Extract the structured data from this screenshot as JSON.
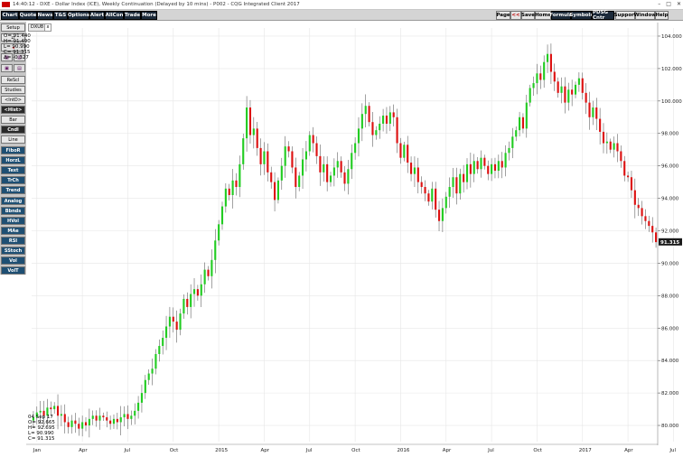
{
  "window": {
    "title": "14:40:12 - DXE - Dollar Index (ICE), Weekly Continuation (Delayed by 10 mins) - P002 - CQG Integrated Client 2017",
    "min_label": "–",
    "max_label": "□",
    "close_label": "✕"
  },
  "toolbar": {
    "left": [
      "Chart",
      "Quote",
      "News",
      "T&S",
      "Options",
      "Alert",
      "AllCon",
      "Trade",
      "More"
    ],
    "right": [
      "Page",
      "<<",
      "Save",
      "Home",
      "Formula",
      "Symbols",
      "PDSG Cntr",
      "Support",
      "Window",
      "Help"
    ]
  },
  "sidebar": {
    "setup": "Setup",
    "sync": "⇄",
    "red_arrow": "◂",
    "grid_a": "▦",
    "grid_b": "▥",
    "grid_c": "▣",
    "grid_d": "▤",
    "refresh": "ReScl",
    "studies": "Studies",
    "intd": "<IntD>",
    "hist": "<Hist>",
    "bar": "Bar",
    "candle": "Cndl",
    "line": "Line",
    "studies_list": [
      "FiboR",
      "HorzL",
      "Text",
      "TrCh",
      "Trend",
      "Analog",
      "Bbnds",
      "HVol",
      "MAe",
      "RSI",
      "SStoch",
      "Vol",
      "VolT"
    ]
  },
  "symbol": {
    "tag": "DXU8",
    "close_x": "x"
  },
  "info_panel": {
    "date": "04 Sep 17",
    "open": "O=  92.665",
    "high": "H=  92.695",
    "low": "L=  90.990",
    "close": "C=  91.315"
  },
  "top_readout": {
    "open": "O=  91.440",
    "high": "H=  91.490",
    "low": "L=  90.990",
    "close": "C=  91.315",
    "delta": "Δ=  -0.327"
  },
  "last_price": "91.315",
  "colors": {
    "up": "#22cc22",
    "down": "#dd1111",
    "last_price_bg": "#1a1a1a",
    "grid": "#e6e6e6"
  },
  "chart_data": {
    "type": "candlestick",
    "symbol": "DXE",
    "ylim": [
      79.0,
      104.5
    ],
    "yticks": [
      80,
      82,
      84,
      86,
      88,
      90,
      92,
      94,
      96,
      98,
      100,
      102,
      104
    ],
    "ytick_labels": [
      "80.000",
      "82.000",
      "84.000",
      "86.000",
      "88.000",
      "90.000",
      "92.000",
      "94.000",
      "96.000",
      "98.000",
      "100.000",
      "102.000",
      "104.000"
    ],
    "xticks": [
      {
        "label": "Jan",
        "i": 1
      },
      {
        "label": "Apr",
        "i": 14
      },
      {
        "label": "Jul",
        "i": 27
      },
      {
        "label": "Oct",
        "i": 40
      },
      {
        "label": "2015",
        "i": 53
      },
      {
        "label": "Apr",
        "i": 66
      },
      {
        "label": "Jul",
        "i": 79
      },
      {
        "label": "Oct",
        "i": 92
      },
      {
        "label": "2016",
        "i": 105
      },
      {
        "label": "Apr",
        "i": 118
      },
      {
        "label": "Jul",
        "i": 131
      },
      {
        "label": "Oct",
        "i": 144
      },
      {
        "label": "2017",
        "i": 157
      },
      {
        "label": "Apr",
        "i": 170
      },
      {
        "label": "Jul",
        "i": 183
      }
    ],
    "closes": [
      80.5,
      80.8,
      80.9,
      80.6,
      81.1,
      81.0,
      81.2,
      80.6,
      80.7,
      80.2,
      79.9,
      80.3,
      80.1,
      79.8,
      80.2,
      80.0,
      80.4,
      80.6,
      80.3,
      80.6,
      80.5,
      80.3,
      80.1,
      80.4,
      80.2,
      80.5,
      80.7,
      80.4,
      80.6,
      80.9,
      81.4,
      82.0,
      82.8,
      83.2,
      83.5,
      84.4,
      84.9,
      85.4,
      86.1,
      86.7,
      86.4,
      85.9,
      86.9,
      87.8,
      87.3,
      88.1,
      88.4,
      88.0,
      88.7,
      89.6,
      89.2,
      90.2,
      91.4,
      92.4,
      93.5,
      94.6,
      94.2,
      95.1,
      94.7,
      96.1,
      97.7,
      99.6,
      97.9,
      98.3,
      97.1,
      96.1,
      96.9,
      95.6,
      95.0,
      93.9,
      95.1,
      96.0,
      97.2,
      96.9,
      95.9,
      94.7,
      95.4,
      96.4,
      96.9,
      97.9,
      97.4,
      96.6,
      95.6,
      96.1,
      95.0,
      95.4,
      95.9,
      96.3,
      95.6,
      94.9,
      95.8,
      96.8,
      97.4,
      98.3,
      99.2,
      99.7,
      98.7,
      97.9,
      98.2,
      98.6,
      99.1,
      98.6,
      99.3,
      99.0,
      97.4,
      96.5,
      97.3,
      96.2,
      95.5,
      95.9,
      95.0,
      94.7,
      94.3,
      93.8,
      94.6,
      93.3,
      92.6,
      93.4,
      94.1,
      94.7,
      95.3,
      94.3,
      95.5,
      95.0,
      96.1,
      95.5,
      96.3,
      95.8,
      96.5,
      96.0,
      95.5,
      96.1,
      95.7,
      96.3,
      95.9,
      96.8,
      97.1,
      97.8,
      98.2,
      99.0,
      98.3,
      99.9,
      100.8,
      101.1,
      101.7,
      101.3,
      102.4,
      102.9,
      101.8,
      101.2,
      100.5,
      100.9,
      99.9,
      100.7,
      100.4,
      101.0,
      101.4,
      100.5,
      99.9,
      99.0,
      99.6,
      98.9,
      98.1,
      97.4,
      97.5,
      97.0,
      97.4,
      96.9,
      96.3,
      95.4,
      95.3,
      94.5,
      93.6,
      93.4,
      92.9,
      92.6,
      92.3,
      91.9,
      91.3
    ],
    "last_close": 91.315
  }
}
